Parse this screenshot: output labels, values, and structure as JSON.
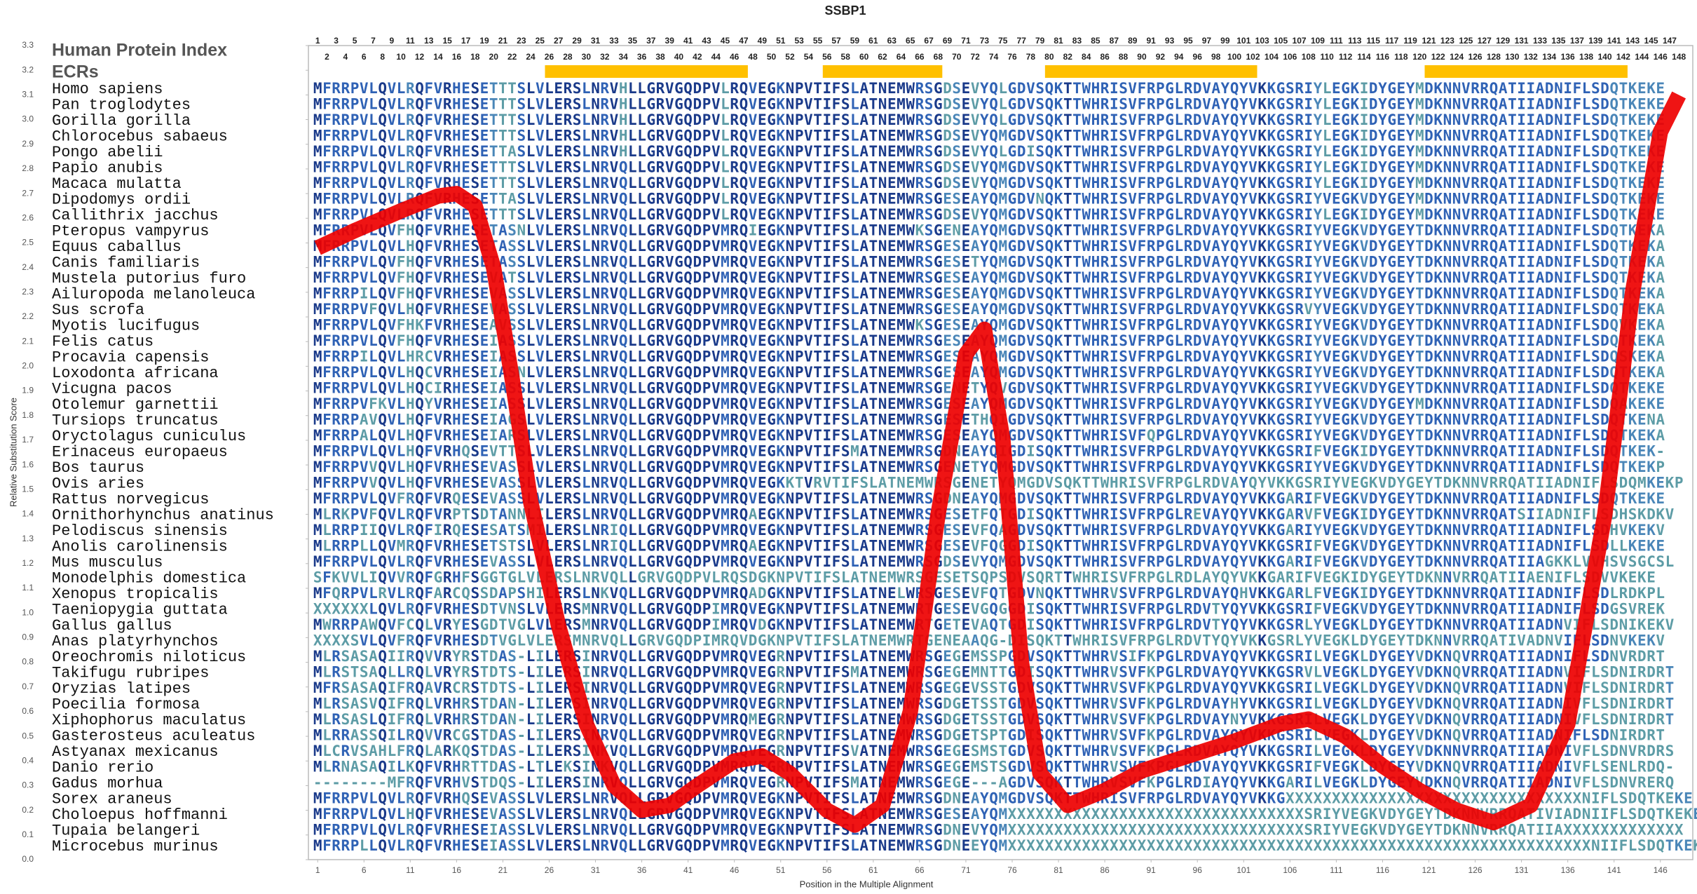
{
  "chart_data": {
    "type": "line",
    "title": "SSBP1",
    "xlabel": "Position in the Multiple Alignment",
    "ylabel": "Relative Substitution Score",
    "color": "#ee0000",
    "x": [
      1,
      5,
      10,
      14,
      16,
      18,
      20,
      22,
      24,
      27,
      30,
      33,
      36,
      39,
      42,
      46,
      49,
      52,
      56,
      59,
      62,
      65,
      68,
      71,
      73,
      75,
      77,
      79,
      82,
      86,
      90,
      95,
      100,
      105,
      108,
      112,
      116,
      120,
      124,
      128,
      132,
      136,
      140,
      143,
      146,
      148
    ],
    "values": [
      2.48,
      2.55,
      2.63,
      2.69,
      2.7,
      2.65,
      2.4,
      1.95,
      1.45,
      0.95,
      0.55,
      0.3,
      0.2,
      0.22,
      0.3,
      0.4,
      0.42,
      0.35,
      0.2,
      0.14,
      0.22,
      0.6,
      1.4,
      2.05,
      2.15,
      1.7,
      0.8,
      0.35,
      0.22,
      0.28,
      0.36,
      0.42,
      0.48,
      0.55,
      0.57,
      0.5,
      0.38,
      0.28,
      0.2,
      0.15,
      0.22,
      0.55,
      1.4,
      2.3,
      2.95,
      3.1
    ],
    "xlim": [
      0,
      149.5
    ],
    "ylim": [
      0,
      3.3
    ],
    "xticks": [
      1,
      6,
      11,
      16,
      21,
      26,
      31,
      36,
      41,
      46,
      51,
      56,
      61,
      66,
      71,
      76,
      81,
      86,
      91,
      96,
      101,
      106,
      111,
      116,
      121,
      126,
      131,
      136,
      141,
      146
    ],
    "yticks": [
      {
        "value": 0,
        "label": "0.0"
      },
      {
        "value": 0.1,
        "label": "0.1"
      },
      {
        "value": 0.2,
        "label": "0.2"
      },
      {
        "value": 0.3,
        "label": "0.3"
      },
      {
        "value": 0.4,
        "label": "0.4"
      },
      {
        "value": 0.5,
        "label": "0.5"
      },
      {
        "value": 0.6,
        "label": "0.6"
      },
      {
        "value": 0.7,
        "label": "0.7"
      },
      {
        "value": 0.8,
        "label": "0.8"
      },
      {
        "value": 0.9,
        "label": "0.9"
      },
      {
        "value": 1,
        "label": "1.0"
      },
      {
        "value": 1.1,
        "label": "1.1"
      },
      {
        "value": 1.2,
        "label": "1.2"
      },
      {
        "value": 1.3,
        "label": "1.3"
      },
      {
        "value": 1.4,
        "label": "1.4"
      },
      {
        "value": 1.5,
        "label": "1.5"
      },
      {
        "value": 1.6,
        "label": "1.6"
      },
      {
        "value": 1.7,
        "label": "1.7"
      },
      {
        "value": 1.8,
        "label": "1.8"
      },
      {
        "value": 1.9,
        "label": "1.9"
      },
      {
        "value": 2,
        "label": "2.0"
      },
      {
        "value": 2.1,
        "label": "2.1"
      },
      {
        "value": 2.2,
        "label": "2.2"
      },
      {
        "value": 2.3,
        "label": "2.3"
      },
      {
        "value": 2.4,
        "label": "2.4"
      },
      {
        "value": 2.5,
        "label": "2.5"
      },
      {
        "value": 2.6,
        "label": "2.6"
      },
      {
        "value": 2.7,
        "label": "2.7"
      },
      {
        "value": 2.8,
        "label": "2.8"
      },
      {
        "value": 2.9,
        "label": "2.9"
      },
      {
        "value": 3,
        "label": "3.0"
      },
      {
        "value": 3.1,
        "label": "3.1"
      },
      {
        "value": 3.2,
        "label": "3.2"
      },
      {
        "value": 3.3,
        "label": "3.3"
      }
    ],
    "ecrs": [
      [
        26,
        47
      ],
      [
        56,
        68
      ],
      [
        80,
        102
      ],
      [
        121,
        142
      ]
    ],
    "ecr_color": "#ffc000"
  },
  "alignment": {
    "index_label": "Human Protein Index",
    "ecr_label": "ECRs",
    "positions": [
      1,
      2,
      3,
      4,
      5,
      6,
      7,
      8,
      9,
      10,
      11,
      12,
      13,
      14,
      15,
      16,
      17,
      18,
      19,
      20,
      21,
      22,
      23,
      24,
      25,
      26,
      27,
      28,
      29,
      30,
      31,
      32,
      33,
      34,
      35,
      36,
      37,
      38,
      39,
      40,
      41,
      42,
      43,
      44,
      45,
      46,
      47,
      48,
      49,
      50,
      51,
      52,
      53,
      54,
      55,
      56,
      57,
      58,
      59,
      60,
      61,
      62,
      63,
      64,
      65,
      66,
      67,
      68,
      69,
      70,
      71,
      72,
      73,
      74,
      75,
      76,
      77,
      78,
      79,
      80,
      81,
      82,
      83,
      84,
      85,
      86,
      87,
      88,
      89,
      90,
      91,
      92,
      93,
      94,
      95,
      96,
      97,
      98,
      99,
      100,
      101,
      102,
      103,
      104,
      105,
      106,
      107,
      108,
      109,
      110,
      111,
      112,
      113,
      114,
      115,
      116,
      117,
      118,
      119,
      120,
      121,
      122,
      123,
      124,
      125,
      126,
      127,
      128,
      129,
      130,
      131,
      132,
      133,
      134,
      135,
      136,
      137,
      138,
      139,
      140,
      141,
      142,
      143,
      144,
      145,
      146,
      147,
      148
    ],
    "rows": [
      {
        "species": "Homo sapiens",
        "sequence": "MFRRPVLQVLRQFVRHESETTTSLVLERSLNRVHLLGRVGQDPVLRQVEGKNPVTIFSLATNEMWRSGDSEVYQLGDVSQKTTWHRISVFRPGLRDVAYQYVKKGSRIYLEGKIDYGEYMDKNNVRRQATIIADNIFLSDQTKEKE"
      },
      {
        "species": "Pan troglodytes",
        "sequence": "MFRRPVLQVLRQFVRHESETTTSLVLERSLNRVHLLGRVGQDPVLRQVEGKNPVTIFSLATNEMWRSGDSEVYQLGDVSQKTTWHRISVFRPGLRDVAYQYVKKGSRIYLEGKIDYGEYMDKNNVRRQATIIADNIFLSDQTKEKE"
      },
      {
        "species": "Gorilla gorilla",
        "sequence": "MFRRPVLQVLRQFVRHESETTTSLVLERSLNRVHLLGRVGQDPVLRQVEGKNPVTIFSLATNEMWRSGDSEVYQLGDVSQKTTWHRISVFRPGLRDVAYQYVKKGSRIYLEGKIDYGEYMDKNNVRRQATIIADNIFLSDQTKEKE"
      },
      {
        "species": "Chlorocebus sabaeus",
        "sequence": "MFRRPVLQVLRQFVRHESETTTSLVLERSLNRVHLLGRVGQDPVLRQVEGKNPVTIFSLATNEMWRSGDSEVYQMGDVSQKTTWHRISVFRPGLRDVAYQYVKKGSRIYLEGKIDYGEYMDKNNVRRQATIIADNIFLSDQTKEKE"
      },
      {
        "species": "Pongo abelii",
        "sequence": "MFRRPVLQVLRQFVRHESETTASLVLERSLNRVHLLGRVGQDPVLRQVEGKNPVTIFSLATNEMWRSGDSEVYQLGDISQKTTWHRISVFRPGLRDVAYQYVKKGSRIYLEGKIDYGEYMDKNNVRRQATIIADNIFLSDQTKEKE"
      },
      {
        "species": "Papio anubis",
        "sequence": "MFRRPVLQVLRQFVRHESETTTSLVLERSLNRVQLLGRVGQDPVLRQVEGKNPVTIFSLATNEMWRSGDSEVYQMGDVSQKTTWHRISVFRPGLRDVAYQYVKKGSRIYLEGKIDYGEYMDKNNVRRQATIIADNIFLSDQTKEKE"
      },
      {
        "species": "Macaca mulatta",
        "sequence": "MFRRPVLQVLRQFVRHESETTTSLVLERSLNRVQLLGRVGQDPVLRQVEGKNPVTIFSLATNEMWRSGDSEVYQMGDVSQKTTWHRISVFRPGLRDVAYQYVKKGSRIYLEGKIDYGEYMDKNNVRRQATIIADNIFLSDQTKEKE"
      },
      {
        "species": "Dipodomys ordii",
        "sequence": "MFRRPVLQVLRQFVRHESETTASLVLERSLNRVQLLGRVGQDPVLRQVEGKNPVTIFSLATNEMWRSGESEAYQMGDVNQKTTWHRISVFRPGLRDVAYQYVKKGSRIYVEGKVDYGEYMDKNNVRRQATIIADNIFLSDQTKEKE"
      },
      {
        "species": "Callithrix jacchus",
        "sequence": "MFRRPVLQVLRQFVRHESETTTSLVLERSLNRVQLLGRVGQDPVLRQVEGKNPVTIFSLATNEMWRSGDSEVYQMGDVSQKTTWHRISVFRPGLRDVAYQYVKKGSRIYLEGKIDYGEYMDKNNVRRQATIIADNIFLSDQTKEKE"
      },
      {
        "species": "Pteropus vampyrus",
        "sequence": "MFRRPVLQVFHQFVRHESETASNLVLERSLNRVQLLGRVGQDPVMRQIEGKNPVTIFSLATNEMWKSGENEAYQMGDVSQKTTWHRISVFRPGLRDVAYQYVKKGSRIYVEGKVDYGEYTDKNNVRRQATIIADNIFLSDQTKEKA"
      },
      {
        "species": "Equus caballus",
        "sequence": "MFRRPVLQVLHQFVRHESETASSLVLERSLNRVQLLGRVGQDPVMRQVEGKNPVTIFSLATNEMWRSGESEAYQMGDVSQKTTWHRISVFRPGLRDVAYQYVKKGSRIYVEGKVDYGEYTDKNNVRRQATIIADNIFLSDQTKEKA"
      },
      {
        "species": "Canis familiaris",
        "sequence": "MFRRPVLQVFHQFVRHESETASSLVLERSLNRVQLLGRVGQDPVMRQVEGKNPVTIFSLATNEMWRSGESETYQMGDVSQKTTWHRISVFRPGLRDVAYQYVKKGSRIYVEGKVDYGEYTDKNNVRRQATIIADNIFLSDQTKEKA"
      },
      {
        "species": "Mustela putorius furo",
        "sequence": "MFRRPVLQVFHQFVRHESEVATSLVLERSLNRVQLLGRVGQDPVMRQVEGKNPVTIFSLATNEMWRSGESEAYQMGDVSQKTTWHRISVFRPGLRDVAYQYVKKGSRIYVEGKVDYGEYTDKNNVRRQATIIADNIFLSDQTKEKA"
      },
      {
        "species": "Ailuropoda melanoleuca",
        "sequence": "MFRRPILQVFHQFVRHESEVASSLVLERSLNRVQLLGRVGQDPVMRQVEGKNPVTIFSLATNEMWRSGESEAYQMGDVSQKTTWHRISVFRPGLRDVAYQYVKKGSRIYVEGKVDYGEYTDKNNVRRQATIIADNIFLSDQTKEKA"
      },
      {
        "species": "Sus scrofa",
        "sequence": "MFRRPVFQVLHQFVRHESEVASSLVLERSLNRVQLLGRVGQDPVMRQVEGKNPVTIFSLATNEMWRSGESEAYQMGDVSQKTTWHRISVFRPGLRDVAYQYVKKGSRVYVEGKVDYGEYTDKNNVRRQATIIADNIFLSDQTKEKA"
      },
      {
        "species": "Myotis lucifugus",
        "sequence": "MFRRPVLQVFHKFVRHESEAVSSLVLERSLNRVQLLGRVGQDPVMRQVEGKNPVTIFSLATNEMWKSGESEAYQMGDVSQKTTWHRISVFRPGLRDVAYQYVKKGSRIYVEGKVDYGEYTDKNNVRRQATIIADNIFLSDQVKEKA"
      },
      {
        "species": "Felis catus",
        "sequence": "MFRRPVLQVFHQFVRHESEIASSLVLERSLNRVQLLGRVGQDPVMRQVEGKNPVTIFSLATNEMWRSGESEAYQMGDVSQKTTWHRISVFRPGLRDVAYQYVKKGSRIYVEGKVDYGEYTDKNNVRRQATIIADNIFLSDQTKEKA"
      },
      {
        "species": "Procavia capensis",
        "sequence": "MFRRPILQVLHRCVRHESEIASSLVLERSLNRVQLLGRVGQDPVMRQVEGKNPVTIFSLATNEMWRSGESEAYQMGDVSQKTTWHRISVFRPGLRDVAYQYVKKGSRIYVEGKVDYGEYTDKNNVRRQATIIADNIFLSDQSKEKA"
      },
      {
        "species": "Loxodonta africana",
        "sequence": "MFRRPVLQVLHQCVRHESEIASNLVLERSLNRVQLLGRVGQDPVMRQVEGKNPVTIFSLATNEMWRSGESEAYQMGDVSQKTTWHRISVFRPGLRDVAYQYVKKGSRIYVEGKVDYGEYTDKNNVRRQATIIADNIFLSDQTKEKA"
      },
      {
        "species": "Vicugna pacos",
        "sequence": "MFRRPVLQVLHQCIRHESEIASSLVLERSLNRVQLLGRVGQDPVMRQVEGKNPVTIFSLATNEMWRSGENETYQVGDVSQKTTWHRISVFRPGLRDVAYQYVKKGSRIYVEGKVDYGEYTDKNNVRRQATIIADNIFLSDQTKEKE"
      },
      {
        "species": "Otolemur garnettii",
        "sequence": "MFRRPVFKVLHQYVRHESEIASSLVLERSLNRVQLLGRVGQDPVMRQVEGKNPVTIFSLATNEMWRSGESEAYQMGDVSQKTTWHRISVFRPGLRDVAYQYVKKGSRIYVEGKVDYGEYMDKNNVRRQATIIADNIFLSDQAKEKE"
      },
      {
        "species": "Tursiops truncatus",
        "sequence": "MFRRPAVQVLHQFVRHESEIAGSLVLERSLNRVQLLGRVGQDPVMRQVEGKNPVTIFSLATNEMWRSGESETHQIGDVSQKTTWHRISVFRPGLRDVAYQYVKKGSRIYVEGKVDYGEYTDKNNVRRQATIIADNIFLSDQTKENA"
      },
      {
        "species": "Oryctolagus cuniculus",
        "sequence": "MFRRPALQVLHQFVRHESEIARSLVLERSLNRVQLLGRVGQDPVMRQVEGKNPVTIFSLATNEMWRSGESEAYQMGDVSQKTTWHRISVFQPGLRDVAYQYVKKGSRIYVEGKVDYGEYTDKNNVRRQATIIADNIFLSDQTKEKA"
      },
      {
        "species": "Erinaceus europaeus",
        "sequence": "MFRRPVLQVLHQFVRHQSEVTTSLVLERSLNRVQLLGRVGQDPVMRQVEGKNPVTIFSMATNEMWRSGDNEAYQIGDISQKTTWHRISVFRPGLRDVAYQYVKKGSRIFVEGKIDYGEYTDKNNVRRQATIIADNIFLSDQTKEK-"
      },
      {
        "species": "Bos taurus",
        "sequence": "MFRRPVVQVLHQFVRHESEVASSLVLERSLNRVQLLGRVGQDPVMRQVEGKNPVTIFSLATNEMWRSGENETYQMGDVSQKTTWHRISVFRPGLRDVAYQYVKKGSRIYVEGKVDYGEYTDKNNVRRQATIIADNIFLSDQTKEKP"
      },
      {
        "species": "Ovis aries",
        "sequence": "MFRRPVVQVLHQFVRHESEVASSLVLERSLNRVQLLGRVGQDPVMRQVEGKKTVRVTIFSLATNEMWRSGENETYQMGDVSQKTTWHRISVFRPGLRDVAYQYVKKGSRIYVEGKVDYGEYTDKNNVRRQATIIADNIFLSDQMKEKP"
      },
      {
        "species": "Rattus norvegicus",
        "sequence": "MFRRPVLQVFRQFVRQESEVASSLVLERSLNRVQLLGRVGQDPVMRQVEGKNPVTIFSLATNEMWRSGDNEAYQMGDVSQKTTWHRISVFRPGLRDVAYQYVKKGARIFVEGKVDYGEYTDKNNVRRQATIIADNIFLSDQTKEKE"
      },
      {
        "species": "Ornithorhynchus anatinus",
        "sequence": "MLRKPVFQVLRQFVRPTSDTANNLILERSLNRVQLLGRVGQDPVMRQAEGKNPVTIFSLATNEMWRSGESETFQTGDISQKTTWHRISVFRPGLREVAYQYVKKGARVFVEGKIDYGEYTDKNNVRRQATSIIADNIFLSDHSKDKV"
      },
      {
        "species": "Pelodiscus sinensis",
        "sequence": "MLRRPIIQVLRQFIRQESESATSMILERSLNRIQLLGRVGQDPVMRQVEGKNPVTIFSLATNEMWRSGESEVFQAGDVSQKTTWHRISVFRPGLRDVAYQYVKKGARIYVEGKVDYGEYTDKNNVRRQATIIADNIFLSDHVKEKV"
      },
      {
        "species": "Anolis carolinensis",
        "sequence": "MLRRPLLQVMRQFVRHESETSTSLVLERSLNRIQLLGRVGQDPVMRQAEGKNPVTIFSLATNEMWRSGESEVFQGGDISQKTTWHRISVFRPGLRDVAYQYVKKGSRIFVEGKVDYGEYTDKNNVRRQATIIADNIFLSDLLKEKE"
      },
      {
        "species": "Mus musculus",
        "sequence": "MFRRPVLQVLRQFVRHESEVASSLVLERSLNRVQLLGRVGQDPVMRQVEGKNPVTIFSLATNEMWRSGDSEVYQMGDVSQKTTWHRISVFRPGLRDVAYQYVKKGARIFVEGKVDYGEYTDKNNVRRQATIIAGKKLVVHSVSGCSL"
      },
      {
        "species": "Monodelphis domestica",
        "sequence": "SFKVVLIQVVRQFGRHFSGGTGLVLERSLNRVQLLGRVGQDPVLRQSDGKNPVTIFSLATNEMWRSGESETSQPSDVSQRTTWHRISVFRPGLRDLAYQYVKKGARIFVEGKIDYGEYTDKNNVRRQATIIAENIFLSDVVKEKE"
      },
      {
        "species": "Xenopus tropicalis",
        "sequence": "MFQRPVLRVLRQFARCQSSDAPSHILERSLNKVQLLGRVGQDPVMRQADGKNPVTIFSLATNELWRSGESEVFQTGDVNQKTTWHRVSVFRPGLRDVAYQHVKKGARLFVEGKIDYGEYTDKNNVRRQATIIADNIFLSDLRDKPL"
      },
      {
        "species": "Taeniopygia guttata",
        "sequence": "XXXXXXLQVLRQFVRHESDTVNSLVLERSMNRVQLLGRVGQDPIMRQVEGKNPVTIFSLATNEMWRTGESEVGQGGDISQKTTWHRISVFRPGLRDVTYQYVKKGSRIFVEGKVDYGEYTDKNNVRRQATIIADNIFLSDGSVREK"
      },
      {
        "species": "Gallus gallus",
        "sequence": "MWRRPAWQVFCQLVRYESGDTVGLVLERSMNRVQLLGRVGQDPIMRQVDGKNPVTIFSLATNEMWRTGETEVAQTGDISQKTTWHRISVFRPGLRDVTYQYVKKGSRLYVEGKLDYGEYTDKNNVRRQATIIADNVIFLSDNIKEKV"
      },
      {
        "species": "Anas platyrhynchos",
        "sequence": "XXXXSVLQVFRQFVRHESDTVGLVLERSMNRVQLLGRVGQDPIMRQVDGKNPVTIFSLATNEMWRTGENEAAQG-DISQKTTWHRISVFRPGLRDVTYQYVKKGSRLYVEGKLDYGEYTDKNNVRRQATIVADNVIFLSDNVKEKV"
      },
      {
        "species": "Oreochromis niloticus",
        "sequence": "MLRSASAQIIRQVVRYRSTDAS-LILERSINRVQLLGRVGQDPVMRQVEGRNPVTIFSLATNEMWRSGEGEMSSPGDVSQKTTWHRVSIFKPGLRDVAYQYVKKGSRILVEGKLDYGEYVDKNQVRRQATIIADNIFLSDNVRDRT"
      },
      {
        "species": "Takifugu rubripes",
        "sequence": "MLRSTSAQLLRQLVRYRSTDTS-LILERSINRVQLLGRVGQDPVMRQVEGRNPVTIFSMATNEMWRSGEGEMNTTGDISQKTTWHRVSVFKPGLRDVAYQYVKKGSRVLVEGKLDYGEYVDKNQVRRQATIIADNVIFLSDNIRDRT"
      },
      {
        "species": "Oryzias latipes",
        "sequence": "MFRSASAQIFRQAVRCRSTDTS-LILERSINRVQLLGRVGQDPVMRQVEGRNPVTIFSLATNEMWRSGEGEVSSTGDVSQKTTWHRVSVFKPGLRDVAYQYVKKGSRILVEGKLDYGEYVDKNQVRRQATIIADNVIFLSDNIRDRT"
      },
      {
        "species": "Poecilia formosa",
        "sequence": "MLRSASVQIFRQLVRHRSTDAN-LILERSINRVQLLGRVGQDPVMRQVEGRNPVTIFSLATNEMWRSGDGETSSTGDVSQKTTWHRVSVFKPGLRDVAYHYVKKGSRILVEGKLDYGEYVDKNQVRRQATIIADNIVFLSDNIRDRT"
      },
      {
        "species": "Xiphophorus maculatus",
        "sequence": "MLRSASLQIFRQLVRHRSTDAN-LILERSINRVQLLGRVGQDPVMRQMEGRNPVTIFSLATNEMWRSGDGETSSTGDVSQKTTWHRVSVFKPGLRDVAYNYVKKGSRILVEGKLDYGEYVDKNQVRRQATIIADNIVFLSDNIRDRT"
      },
      {
        "species": "Gasterosteus aculeatus",
        "sequence": "MLRRASSQILRQVVRCGSTDAS-LILERSINRVQLLGRVGQDPVMRQVEGRNPVTIFSLATNEMWRSGDGETSPTGDISQKTTWHRVSVFKPGLRDVAYQYVKKGSRILVEGKLDYGEYVDKNQVRRQATIIADNIFLSDNIRDRT"
      },
      {
        "species": "Astyanax mexicanus",
        "sequence": "MLCRVSAHLFRQLARKQSTDAS-LILERSINKVQLLGRVGQDPVMRQVEGRNPVTIFSVATNEMWRSGEGESMSTGDVSQKTTWHRVSVFKPGLRDVAYQYVKKGSRILVEGKLDYGEYVDKNNVRRQATIIADNIVFLSDNVRDRS"
      },
      {
        "species": "Danio rerio",
        "sequence": "MLRNASAQILKQFVRHRTTDAS-LTLEKSINKVQLLGRVGQDPVMRQVEGRNPVTIFSLATNEMWRSGEGEMSTSGDVSQKTTWHRVSVFKPGLRDVAYQYVKKGSRIFVEGKLDYGEYVDKNQVRRQATIIADNIVFLSENLRDQ-"
      },
      {
        "species": "Gadus morhua",
        "sequence": "--------MFRQFVRHVSTDQS-LILERSINRVQLLGRVGQDPVMRQVEGRNPVTIFSMATNEMWRSGEGE---AGDVSQKTTWHRVSVFKPGLRDIAYQYVKKGARILVEGKLDYGEYVDKNQVRRQATIIADNIVFLSDNVRERQ"
      },
      {
        "species": "Sorex araneus",
        "sequence": "MFRRPVLQVLRQFVRHQSEVASSLVLERSLNRVQLLGRVGQDPVMRQVEGKNPVTIFSLATNEMWRSGDNEAYQMGDVSQKTTWHRISVFRPGLRDVAYQYVKKGXXXXXXXXXXXXXXXXXXXXXXXXXXXXXXXXNIFLSDQTKEKE"
      },
      {
        "species": "Choloepus hoffmanni",
        "sequence": "MFRRPVLQVLHQFVRHESEVASSLVLERSLNRVQLLGRVGQDPVMRQVEGKNPVTIFSLATNEMWRSGESEAYQMXXXXXXXXXXXXXXXXXXXXXXXXXXXXXXXXSRIYVEGKVDYGEYTDKNNVRRQATIVIADNIIFLSDQTKEKE"
      },
      {
        "species": "Tupaia belangeri",
        "sequence": "MFRRPVLQVLRQFVRHESEIASSLVLERSLNRVQLLGRVGQDPVMRQVEGKNPVTIFSLATNEMWRSGDNEVYQMXXXXXXXXXXXXXXXXXXXXXXXXXXXXXXXXSRIYVEGKVDYGEYTDKNNVRRQATIIAXXXXXXXXXXXXX"
      },
      {
        "species": "Microcebus murinus",
        "sequence": "MFRRPLLQVLRQFVRHESEIASSLVLERSLNRVQLLGRVGQDPVMRQVEGKNPVTIFSLATNEMWRSGDNEEYQMXXXXXXXXXXXXXXXXXXXXXXXXXXXXXXXXXXXXXXXXXXXXXXXXXXXXXXXXXXXXXXXNIIFLSDQTKEKA"
      }
    ]
  }
}
